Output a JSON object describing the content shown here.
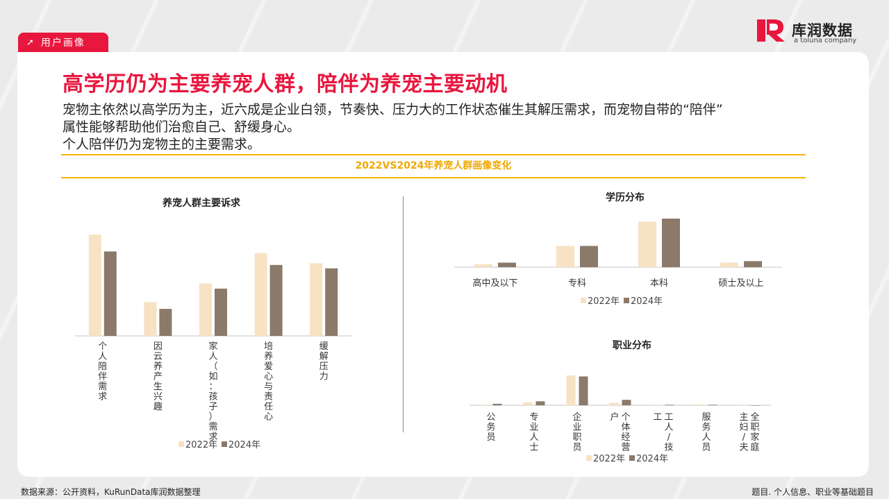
{
  "header": {
    "tag_label": "用户画像",
    "tag_icon": "arrow-up-right-icon",
    "logo_name": "库润数据",
    "logo_sub": "a toluna company"
  },
  "colors": {
    "accent": "#e8173e",
    "band": "#f2b600",
    "series_2022": "#f7e2c4",
    "series_2024": "#8b796a"
  },
  "main": {
    "title": "高学历仍为主要养宠人群，陪伴为养宠主要动机",
    "desc_lines": [
      "宠物主依然以高学历为主，近六成是企业白领，节奏快、压力大的工作状态催生其解压需求，而宠物自带的“陪伴”",
      "属性能够帮助他们治愈自己、舒缓身心。",
      "个人陪伴仍为宠物主的主要需求。"
    ],
    "band_title": "2022VS2024年养宠人群画像变化"
  },
  "chart_data": [
    {
      "type": "bar",
      "title": "养宠人群主要诉求",
      "categories": [
        "个人陪伴需求",
        "因云养产生兴趣",
        "家人（如：孩子）需求",
        "培养爱心与责任心",
        "缓解压力"
      ],
      "series": [
        {
          "name": "2022年",
          "values": [
            60,
            20,
            31,
            49,
            43
          ]
        },
        {
          "name": "2024年",
          "values": [
            50,
            16,
            28,
            42,
            40
          ]
        }
      ],
      "ylim": [
        0,
        65
      ],
      "grid": false,
      "legend": "bottom"
    },
    {
      "type": "bar",
      "title": "学历分布",
      "categories": [
        "高中及以下",
        "专科",
        "本科",
        "硕士及以上"
      ],
      "series": [
        {
          "name": "2022年",
          "values": [
            2,
            14,
            30,
            3
          ]
        },
        {
          "name": "2024年",
          "values": [
            3,
            14,
            32,
            4
          ]
        }
      ],
      "ylim": [
        0,
        35
      ],
      "grid": false,
      "legend": "bottom"
    },
    {
      "type": "bar",
      "title": "职业分布",
      "categories": [
        "公务员",
        "专业人士",
        "企业职员",
        "个体经营户",
        "工人/技工",
        "服务人员",
        "全职家庭主妇/夫"
      ],
      "series": [
        {
          "name": "2022年",
          "values": [
            1,
            6,
            60,
            5,
            1,
            2,
            0
          ]
        },
        {
          "name": "2024年",
          "values": [
            3,
            8,
            58,
            11,
            1,
            1,
            0
          ]
        }
      ],
      "ylim": [
        0,
        65
      ],
      "grid": false,
      "legend": "bottom"
    }
  ],
  "footer": {
    "source": "数据来源：公开资料，KuRunData库润数据整理",
    "question": "题目. 个人信息、职业等基础题目"
  }
}
